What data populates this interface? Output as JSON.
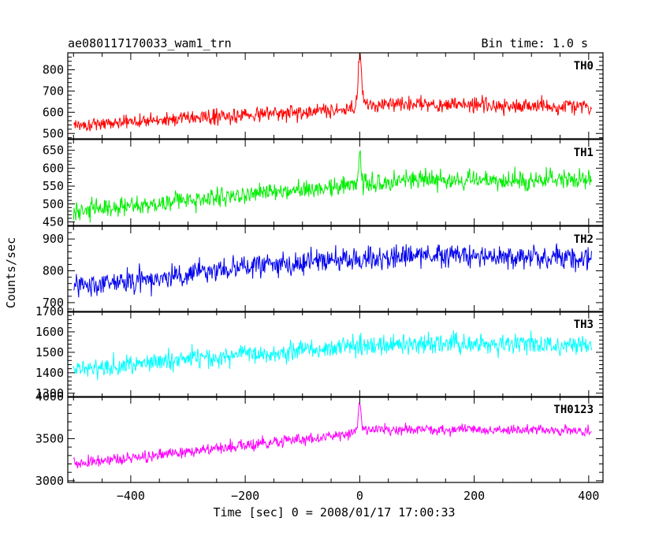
{
  "chart_data": {
    "type": "line",
    "title": "ae080117170033_wam1_trn",
    "subtitle": "Bin time: 1.0 s",
    "xlabel": "Time [sec] 0 = 2008/01/17 17:00:33",
    "ylabel": "Counts/sec",
    "xlim": [
      -510,
      425
    ],
    "x_ticks": [
      -400,
      -200,
      0,
      200,
      400
    ],
    "x_tick_labels": [
      "−400",
      "−200",
      "0",
      "200",
      "400"
    ],
    "x_range": [
      -500,
      405
    ],
    "bin_time_s": 1.0,
    "grid": false,
    "legend": "none",
    "series": [
      {
        "name": "TH0",
        "color": "#ff0000",
        "ylim": [
          475,
          880
        ],
        "y_ticks": [
          500,
          600,
          700,
          800
        ],
        "x_anchor": [
          -500,
          -400,
          -300,
          -200,
          -100,
          -20,
          0,
          10,
          100,
          200,
          300,
          405
        ],
        "y_anchor": [
          540,
          555,
          575,
          590,
          600,
          612,
          640,
          640,
          635,
          635,
          630,
          630
        ],
        "noise": 38,
        "spike": {
          "x": 0,
          "peak": 875,
          "width": 4
        }
      },
      {
        "name": "TH1",
        "color": "#00ee00",
        "ylim": [
          440,
          680
        ],
        "y_ticks": [
          450,
          500,
          550,
          600,
          650
        ],
        "x_anchor": [
          -500,
          -400,
          -300,
          -200,
          -100,
          0,
          100,
          200,
          300,
          405
        ],
        "y_anchor": [
          480,
          495,
          510,
          525,
          540,
          555,
          568,
          565,
          565,
          565
        ],
        "noise": 30,
        "spike": {
          "x": 0,
          "peak": 640,
          "width": 3
        }
      },
      {
        "name": "TH2",
        "color": "#0000ee",
        "ylim": [
          670,
          940
        ],
        "y_ticks": [
          700,
          800,
          900
        ],
        "x_anchor": [
          -500,
          -400,
          -300,
          -200,
          -100,
          0,
          100,
          200,
          300,
          405
        ],
        "y_anchor": [
          750,
          770,
          790,
          810,
          825,
          840,
          845,
          845,
          840,
          838
        ],
        "noise": 40,
        "spike": null
      },
      {
        "name": "TH3",
        "color": "#00ffff",
        "ylim": [
          1280,
          1700
        ],
        "y_ticks": [
          1300,
          1400,
          1500,
          1600,
          1700
        ],
        "x_anchor": [
          -500,
          -400,
          -300,
          -200,
          -100,
          0,
          100,
          200,
          300,
          405
        ],
        "y_anchor": [
          1420,
          1440,
          1470,
          1490,
          1515,
          1530,
          1540,
          1540,
          1540,
          1535
        ],
        "noise": 55,
        "spike": null
      },
      {
        "name": "TH0123",
        "color": "#ff00ff",
        "ylim": [
          2980,
          4000
        ],
        "y_ticks": [
          3000,
          3500,
          4000
        ],
        "x_anchor": [
          -500,
          -400,
          -300,
          -200,
          -100,
          -20,
          0,
          10,
          100,
          200,
          300,
          405
        ],
        "y_anchor": [
          3200,
          3270,
          3350,
          3420,
          3500,
          3550,
          3650,
          3600,
          3600,
          3610,
          3600,
          3580
        ],
        "noise": 75,
        "spike": {
          "x": 0,
          "peak": 3950,
          "width": 3
        }
      }
    ]
  }
}
